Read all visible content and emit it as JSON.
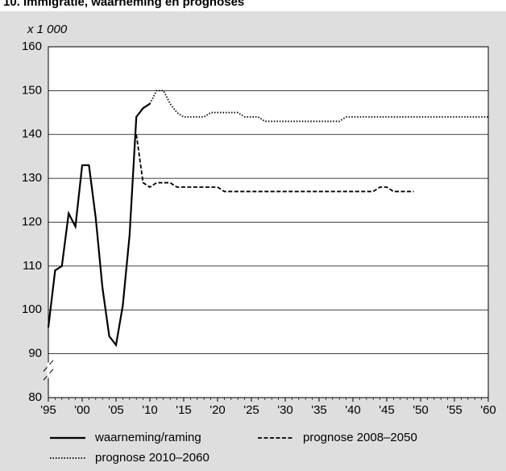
{
  "chart_data": {
    "type": "line",
    "title": "10. Immigratie, waarneming en prognoses",
    "y_label": "x 1 000",
    "xlim": [
      1995,
      2060
    ],
    "xticks": [
      {
        "value": 1995,
        "label": "'95"
      },
      {
        "value": 2000,
        "label": "'00"
      },
      {
        "value": 2005,
        "label": "'05"
      },
      {
        "value": 2010,
        "label": "'10"
      },
      {
        "value": 2015,
        "label": "'15"
      },
      {
        "value": 2020,
        "label": "'20"
      },
      {
        "value": 2025,
        "label": "'25"
      },
      {
        "value": 2030,
        "label": "'30"
      },
      {
        "value": 2035,
        "label": "'35"
      },
      {
        "value": 2040,
        "label": "'40"
      },
      {
        "value": 2045,
        "label": "'45"
      },
      {
        "value": 2050,
        "label": "'50"
      },
      {
        "value": 2055,
        "label": "'55"
      },
      {
        "value": 2060,
        "label": "'60"
      }
    ],
    "ylim": [
      80,
      160
    ],
    "yticks": [
      80,
      90,
      100,
      110,
      120,
      130,
      140,
      150,
      160
    ],
    "grid": true,
    "series": [
      {
        "name": "waarneming/raming",
        "color": "#000000",
        "style": "solid",
        "x": [
          1995,
          1996,
          1997,
          1998,
          1999,
          2000,
          2001,
          2002,
          2003,
          2004,
          2005,
          2006,
          2007,
          2008,
          2009,
          2010
        ],
        "values": [
          96,
          109,
          110,
          122,
          119,
          133,
          133,
          121,
          105,
          94,
          92,
          101,
          117,
          144,
          146,
          147
        ]
      },
      {
        "name": "prognose 2008–2050",
        "color": "#000000",
        "style": "dashed",
        "x": [
          2008,
          2009,
          2010,
          2011,
          2012,
          2013,
          2014,
          2015,
          2016,
          2017,
          2018,
          2019,
          2020,
          2021,
          2022,
          2023,
          2024,
          2025,
          2026,
          2027,
          2028,
          2029,
          2030,
          2031,
          2032,
          2033,
          2034,
          2035,
          2036,
          2037,
          2038,
          2039,
          2040,
          2041,
          2042,
          2043,
          2044,
          2045,
          2046,
          2047,
          2048,
          2049
        ],
        "values": [
          140,
          129,
          128,
          129,
          129,
          129,
          128,
          128,
          128,
          128,
          128,
          128,
          128,
          127,
          127,
          127,
          127,
          127,
          127,
          127,
          127,
          127,
          127,
          127,
          127,
          127,
          127,
          127,
          127,
          127,
          127,
          127,
          127,
          127,
          127,
          127,
          128,
          128,
          127,
          127,
          127,
          127
        ]
      },
      {
        "name": "prognose 2010–2060",
        "color": "#000000",
        "style": "dotted",
        "x": [
          2010,
          2011,
          2012,
          2013,
          2014,
          2015,
          2016,
          2017,
          2018,
          2019,
          2020,
          2021,
          2022,
          2023,
          2024,
          2025,
          2026,
          2027,
          2028,
          2029,
          2030,
          2031,
          2032,
          2033,
          2034,
          2035,
          2036,
          2037,
          2038,
          2039,
          2040,
          2041,
          2042,
          2043,
          2044,
          2045,
          2046,
          2047,
          2048,
          2049,
          2050,
          2051,
          2052,
          2053,
          2054,
          2055,
          2056,
          2057,
          2058,
          2059,
          2060
        ],
        "values": [
          147,
          150,
          150,
          147,
          145,
          144,
          144,
          144,
          144,
          145,
          145,
          145,
          145,
          145,
          144,
          144,
          144,
          143,
          143,
          143,
          143,
          143,
          143,
          143,
          143,
          143,
          143,
          143,
          143,
          144,
          144,
          144,
          144,
          144,
          144,
          144,
          144,
          144,
          144,
          144,
          144,
          144,
          144,
          144,
          144,
          144,
          144,
          144,
          144,
          144,
          144
        ]
      }
    ]
  }
}
